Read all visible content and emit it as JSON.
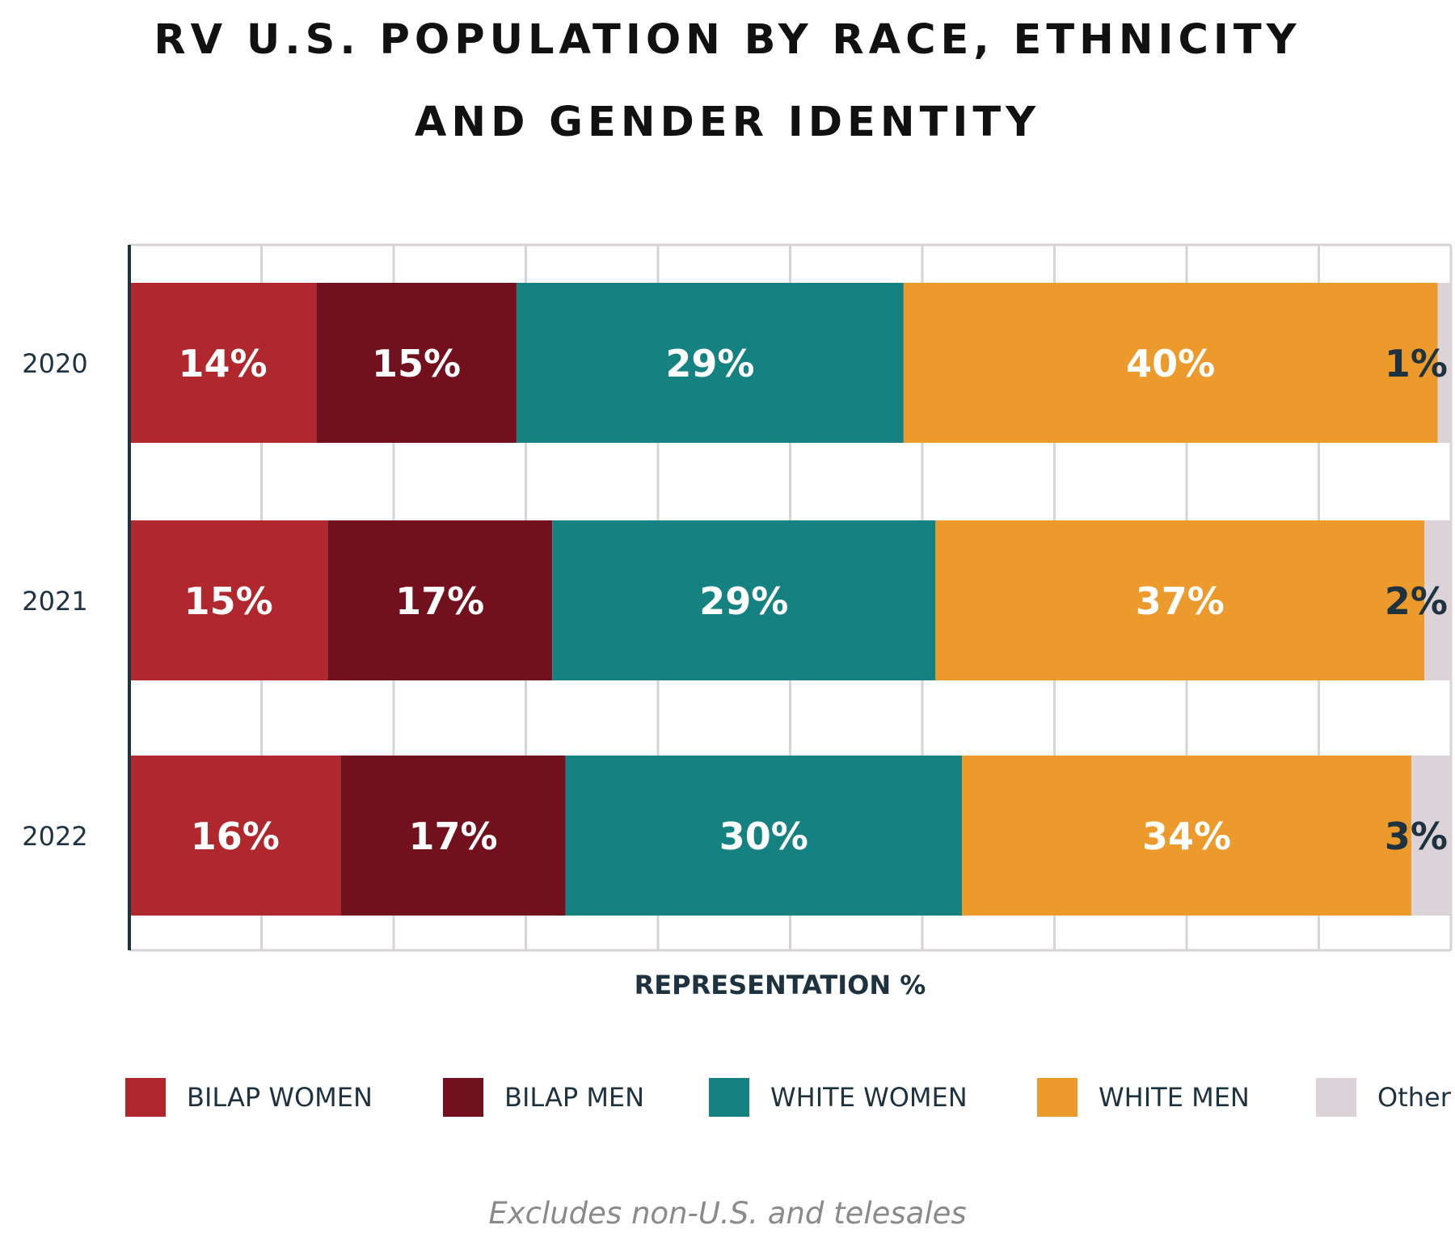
{
  "chart_data": {
    "type": "bar",
    "orientation": "horizontal",
    "stacked": true,
    "title_lines": [
      "RV U.S. POPULATION BY RACE, ETHNICITY",
      "AND GENDER IDENTITY"
    ],
    "xlabel": "REPRESENTATION %",
    "categories": [
      "2020",
      "2021",
      "2022"
    ],
    "series": [
      {
        "name": "BILAP WOMEN",
        "color": "#b0282e",
        "values": [
          14,
          15,
          16
        ],
        "labels": [
          "14%",
          "15%",
          "16%"
        ]
      },
      {
        "name": "BILAP MEN",
        "color": "#72111d",
        "values": [
          15,
          17,
          17
        ],
        "labels": [
          "15%",
          "17%",
          "17%"
        ]
      },
      {
        "name": "WHITE WOMEN",
        "color": "#158281",
        "values": [
          29,
          29,
          30
        ],
        "labels": [
          "29%",
          "29%",
          "30%"
        ]
      },
      {
        "name": "WHITE MEN",
        "color": "#ec9a2c",
        "values": [
          40,
          37,
          34
        ],
        "labels": [
          "40%",
          "37%",
          "34%"
        ]
      },
      {
        "name": "Other",
        "color": "#dcd3d8",
        "values": [
          1,
          2,
          3
        ],
        "labels": [
          "1%",
          "2%",
          "3%"
        ]
      }
    ],
    "xlim": [
      0,
      100
    ],
    "grid": true,
    "legend_position": "bottom",
    "footnote": "Excludes non-U.S. and telesales"
  }
}
